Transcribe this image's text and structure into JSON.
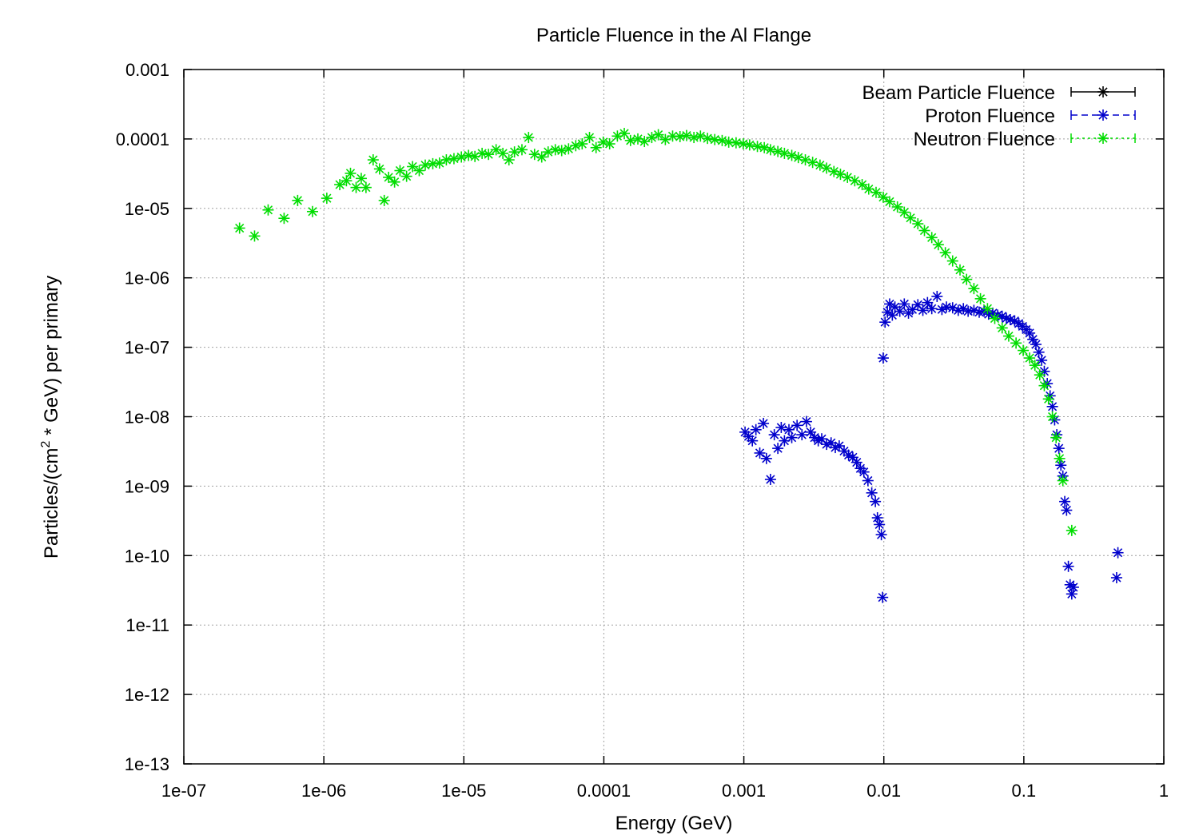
{
  "chart_data": {
    "type": "scatter",
    "title": "Particle Fluence in the Al Flange",
    "xlabel": "Energy (GeV)",
    "ylabel": {
      "prefix": "Particles/(cm",
      "sup": "2",
      "suffix": " * GeV) per primary"
    },
    "x_scale": "log",
    "y_scale": "log",
    "xlim": [
      1e-07,
      1
    ],
    "ylim": [
      1e-13,
      0.001
    ],
    "grid": true,
    "legend_position": "top-right",
    "x_ticks": [
      {
        "value": 1e-07,
        "label": "1e-07"
      },
      {
        "value": 1e-06,
        "label": "1e-06"
      },
      {
        "value": 1e-05,
        "label": "1e-05"
      },
      {
        "value": 0.0001,
        "label": "0.0001"
      },
      {
        "value": 0.001,
        "label": "0.001"
      },
      {
        "value": 0.01,
        "label": "0.01"
      },
      {
        "value": 0.1,
        "label": "0.1"
      },
      {
        "value": 1,
        "label": "1"
      }
    ],
    "y_ticks": [
      {
        "value": 1e-13,
        "label": "1e-13"
      },
      {
        "value": 1e-12,
        "label": "1e-12"
      },
      {
        "value": 1e-11,
        "label": "1e-11"
      },
      {
        "value": 1e-10,
        "label": "1e-10"
      },
      {
        "value": 1e-09,
        "label": "1e-09"
      },
      {
        "value": 1e-08,
        "label": "1e-08"
      },
      {
        "value": 1e-07,
        "label": "1e-07"
      },
      {
        "value": 1e-06,
        "label": "1e-06"
      },
      {
        "value": 1e-05,
        "label": "1e-05"
      },
      {
        "value": 0.0001,
        "label": "0.0001"
      },
      {
        "value": 0.001,
        "label": "0.001"
      }
    ],
    "series": [
      {
        "name": "Beam Particle Fluence",
        "color": "#000000",
        "dash": "solid",
        "points": []
      },
      {
        "name": "Proton Fluence",
        "color": "#0000cc",
        "dash": "dashed",
        "points": [
          [
            0.00102,
            6e-09
          ],
          [
            0.00108,
            5.2e-09
          ],
          [
            0.00115,
            4.5e-09
          ],
          [
            0.00122,
            6.5e-09
          ],
          [
            0.0013,
            3e-09
          ],
          [
            0.00138,
            8e-09
          ],
          [
            0.00145,
            2.5e-09
          ],
          [
            0.00155,
            1.25e-09
          ],
          [
            0.00165,
            5.5e-09
          ],
          [
            0.00175,
            3.5e-09
          ],
          [
            0.00185,
            7e-09
          ],
          [
            0.00195,
            4.5e-09
          ],
          [
            0.0021,
            6.5e-09
          ],
          [
            0.0022,
            5e-09
          ],
          [
            0.0024,
            7.5e-09
          ],
          [
            0.0026,
            5.5e-09
          ],
          [
            0.0028,
            8.5e-09
          ],
          [
            0.003,
            6e-09
          ],
          [
            0.0032,
            5e-09
          ],
          [
            0.0034,
            4.5e-09
          ],
          [
            0.0036,
            4.8e-09
          ],
          [
            0.0039,
            4e-09
          ],
          [
            0.0042,
            4.2e-09
          ],
          [
            0.0045,
            3.6e-09
          ],
          [
            0.0048,
            3.8e-09
          ],
          [
            0.0052,
            3.2e-09
          ],
          [
            0.0056,
            2.8e-09
          ],
          [
            0.006,
            2.6e-09
          ],
          [
            0.0064,
            2.2e-09
          ],
          [
            0.0068,
            1.8e-09
          ],
          [
            0.0072,
            1.6e-09
          ],
          [
            0.0077,
            1.2e-09
          ],
          [
            0.0082,
            8e-10
          ],
          [
            0.0087,
            6e-10
          ],
          [
            0.009,
            3.5e-10
          ],
          [
            0.0093,
            2.8e-10
          ],
          [
            0.0096,
            2e-10
          ],
          [
            0.0098,
            2.5e-11
          ],
          [
            0.0099,
            7e-08
          ],
          [
            0.0102,
            2.3e-07
          ],
          [
            0.0106,
            3.2e-07
          ],
          [
            0.011,
            4.2e-07
          ],
          [
            0.0115,
            2.9e-07
          ],
          [
            0.012,
            3.8e-07
          ],
          [
            0.013,
            3.3e-07
          ],
          [
            0.014,
            4.2e-07
          ],
          [
            0.015,
            3.1e-07
          ],
          [
            0.016,
            3.5e-07
          ],
          [
            0.0175,
            4.1e-07
          ],
          [
            0.019,
            3.4e-07
          ],
          [
            0.0205,
            4.4e-07
          ],
          [
            0.022,
            3.6e-07
          ],
          [
            0.024,
            5.4e-07
          ],
          [
            0.026,
            3.5e-07
          ],
          [
            0.028,
            3.8e-07
          ],
          [
            0.031,
            3.7e-07
          ],
          [
            0.034,
            3.4e-07
          ],
          [
            0.037,
            3.6e-07
          ],
          [
            0.04,
            3.3e-07
          ],
          [
            0.044,
            3.4e-07
          ],
          [
            0.048,
            3.2e-07
          ],
          [
            0.052,
            3.3e-07
          ],
          [
            0.056,
            3e-07
          ],
          [
            0.06,
            3.1e-07
          ],
          [
            0.065,
            2.9e-07
          ],
          [
            0.07,
            2.8e-07
          ],
          [
            0.075,
            2.6e-07
          ],
          [
            0.08,
            2.5e-07
          ],
          [
            0.086,
            2.4e-07
          ],
          [
            0.092,
            2.2e-07
          ],
          [
            0.098,
            2e-07
          ],
          [
            0.104,
            1.8e-07
          ],
          [
            0.11,
            1.6e-07
          ],
          [
            0.116,
            1.3e-07
          ],
          [
            0.122,
            1.1e-07
          ],
          [
            0.128,
            8.5e-08
          ],
          [
            0.134,
            6.5e-08
          ],
          [
            0.14,
            4.5e-08
          ],
          [
            0.147,
            3e-08
          ],
          [
            0.154,
            2e-08
          ],
          [
            0.16,
            1.4e-08
          ],
          [
            0.166,
            9e-09
          ],
          [
            0.172,
            5.5e-09
          ],
          [
            0.178,
            3.5e-09
          ],
          [
            0.184,
            2e-09
          ],
          [
            0.19,
            1.4e-09
          ],
          [
            0.196,
            6e-10
          ],
          [
            0.202,
            4.5e-10
          ],
          [
            0.208,
            7e-11
          ],
          [
            0.214,
            3.8e-11
          ],
          [
            0.22,
            2.8e-11
          ],
          [
            0.226,
            3.5e-11
          ],
          [
            0.46,
            4.8e-11
          ],
          [
            0.47,
            1.1e-10
          ]
        ]
      },
      {
        "name": "Neutron Fluence",
        "color": "#00dd00",
        "dash": "dotted",
        "points": [
          [
            2.5e-07,
            5.2e-06
          ],
          [
            3.2e-07,
            4e-06
          ],
          [
            4e-07,
            9.5e-06
          ],
          [
            5.2e-07,
            7.2e-06
          ],
          [
            6.5e-07,
            1.3e-05
          ],
          [
            8.3e-07,
            9e-06
          ],
          [
            1.05e-06,
            1.4e-05
          ],
          [
            1.3e-06,
            2.2e-05
          ],
          [
            1.45e-06,
            2.5e-05
          ],
          [
            1.55e-06,
            3.2e-05
          ],
          [
            1.7e-06,
            2e-05
          ],
          [
            1.85e-06,
            2.7e-05
          ],
          [
            2e-06,
            2e-05
          ],
          [
            2.25e-06,
            5e-05
          ],
          [
            2.5e-06,
            3.7e-05
          ],
          [
            2.7e-06,
            1.3e-05
          ],
          [
            2.9e-06,
            2.8e-05
          ],
          [
            3.2e-06,
            2.4e-05
          ],
          [
            3.5e-06,
            3.5e-05
          ],
          [
            3.9e-06,
            2.9e-05
          ],
          [
            4.3e-06,
            4e-05
          ],
          [
            4.8e-06,
            3.5e-05
          ],
          [
            5.3e-06,
            4.2e-05
          ],
          [
            6e-06,
            4.4e-05
          ],
          [
            6.7e-06,
            4.5e-05
          ],
          [
            7.5e-06,
            5e-05
          ],
          [
            8.5e-06,
            5.2e-05
          ],
          [
            9.6e-06,
            5.5e-05
          ],
          [
            1.08e-05,
            5.8e-05
          ],
          [
            1.2e-05,
            5.6e-05
          ],
          [
            1.35e-05,
            6.2e-05
          ],
          [
            1.5e-05,
            6e-05
          ],
          [
            1.7e-05,
            7e-05
          ],
          [
            1.9e-05,
            6.2e-05
          ],
          [
            2.1e-05,
            5e-05
          ],
          [
            2.3e-05,
            6.5e-05
          ],
          [
            2.6e-05,
            7e-05
          ],
          [
            2.9e-05,
            0.000105
          ],
          [
            3.2e-05,
            6e-05
          ],
          [
            3.6e-05,
            5.5e-05
          ],
          [
            4e-05,
            6.5e-05
          ],
          [
            4.5e-05,
            7e-05
          ],
          [
            5e-05,
            6.8e-05
          ],
          [
            5.6e-05,
            7.2e-05
          ],
          [
            6.3e-05,
            8e-05
          ],
          [
            7e-05,
            8.5e-05
          ],
          [
            7.9e-05,
            0.000105
          ],
          [
            8.8e-05,
            7.5e-05
          ],
          [
            9.9e-05,
            9e-05
          ],
          [
            0.00011,
            8.5e-05
          ],
          [
            0.000125,
            0.00011
          ],
          [
            0.00014,
            0.00012
          ],
          [
            0.000155,
            9.5e-05
          ],
          [
            0.000175,
            0.0001
          ],
          [
            0.000195,
            9.2e-05
          ],
          [
            0.00022,
            0.000105
          ],
          [
            0.000245,
            0.000115
          ],
          [
            0.000275,
            9.8e-05
          ],
          [
            0.00031,
            0.00011
          ],
          [
            0.00035,
            0.000108
          ],
          [
            0.00039,
            0.000112
          ],
          [
            0.00044,
            0.000105
          ],
          [
            0.00049,
            0.00011
          ],
          [
            0.00055,
            0.000102
          ],
          [
            0.00062,
            9.8e-05
          ],
          [
            0.0007,
            9.5e-05
          ],
          [
            0.00078,
            9e-05
          ],
          [
            0.00088,
            8.8e-05
          ],
          [
            0.00099,
            8.5e-05
          ],
          [
            0.0011,
            8.2e-05
          ],
          [
            0.00125,
            7.8e-05
          ],
          [
            0.0014,
            7.5e-05
          ],
          [
            0.00155,
            7e-05
          ],
          [
            0.00175,
            6.6e-05
          ],
          [
            0.00195,
            6.2e-05
          ],
          [
            0.0022,
            5.8e-05
          ],
          [
            0.00245,
            5.4e-05
          ],
          [
            0.00275,
            5e-05
          ],
          [
            0.0031,
            4.6e-05
          ],
          [
            0.0035,
            4.2e-05
          ],
          [
            0.0039,
            3.8e-05
          ],
          [
            0.0044,
            3.4e-05
          ],
          [
            0.0049,
            3.1e-05
          ],
          [
            0.0055,
            2.8e-05
          ],
          [
            0.0062,
            2.5e-05
          ],
          [
            0.007,
            2.2e-05
          ],
          [
            0.0078,
            1.9e-05
          ],
          [
            0.0088,
            1.7e-05
          ],
          [
            0.0099,
            1.45e-05
          ],
          [
            0.011,
            1.25e-05
          ],
          [
            0.0125,
            1.05e-05
          ],
          [
            0.014,
            8.8e-06
          ],
          [
            0.0155,
            7.3e-06
          ],
          [
            0.0175,
            6e-06
          ],
          [
            0.0195,
            4.8e-06
          ],
          [
            0.022,
            3.8e-06
          ],
          [
            0.0245,
            3e-06
          ],
          [
            0.0275,
            2.3e-06
          ],
          [
            0.031,
            1.75e-06
          ],
          [
            0.035,
            1.3e-06
          ],
          [
            0.039,
            9.5e-07
          ],
          [
            0.044,
            7e-07
          ],
          [
            0.049,
            5e-07
          ],
          [
            0.055,
            3.6e-07
          ],
          [
            0.062,
            2.6e-07
          ],
          [
            0.07,
            1.9e-07
          ],
          [
            0.078,
            1.45e-07
          ],
          [
            0.088,
            1.15e-07
          ],
          [
            0.099,
            9e-08
          ],
          [
            0.11,
            7e-08
          ],
          [
            0.12,
            5.5e-08
          ],
          [
            0.13,
            4e-08
          ],
          [
            0.14,
            2.8e-08
          ],
          [
            0.15,
            1.8e-08
          ],
          [
            0.16,
            1e-08
          ],
          [
            0.17,
            5e-09
          ],
          [
            0.18,
            2.5e-09
          ],
          [
            0.19,
            1.2e-09
          ],
          [
            0.22,
            2.3e-10
          ]
        ]
      }
    ]
  }
}
